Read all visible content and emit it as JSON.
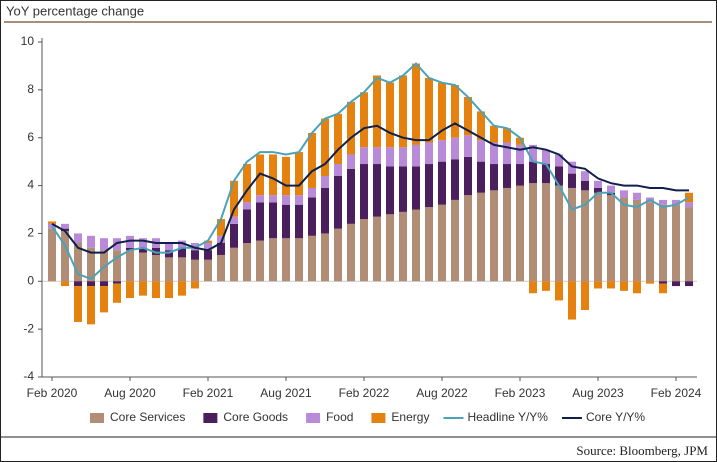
{
  "chart_data": {
    "type": "bar",
    "stacked": true,
    "title": "YoY percentage change",
    "source": "Source: Bloomberg, JPM",
    "categories": [
      "Feb 2020",
      null,
      null,
      null,
      null,
      null,
      "Aug 2020",
      null,
      null,
      null,
      null,
      null,
      "Feb 2021",
      null,
      null,
      null,
      null,
      null,
      "Aug 2021",
      null,
      null,
      null,
      null,
      null,
      "Feb 2022",
      null,
      null,
      null,
      null,
      null,
      "Aug 2022",
      null,
      null,
      null,
      null,
      null,
      "Feb 2023",
      null,
      null,
      null,
      null,
      null,
      "Aug 2023",
      null,
      null,
      null,
      null,
      null,
      "Feb 2024",
      null
    ],
    "ylim": [
      -4,
      10
    ],
    "yticks": [
      -4,
      -2,
      0,
      2,
      4,
      6,
      8,
      10
    ],
    "series": [
      {
        "name": "Core Services",
        "type": "bar",
        "color": "#b08d74",
        "values": [
          2.2,
          2.1,
          1.6,
          1.4,
          1.3,
          1.3,
          1.3,
          1.2,
          1.1,
          1.0,
          1.0,
          0.9,
          0.9,
          1.1,
          1.4,
          1.6,
          1.7,
          1.8,
          1.8,
          1.8,
          1.9,
          2.0,
          2.2,
          2.4,
          2.6,
          2.7,
          2.8,
          2.9,
          3.0,
          3.1,
          3.2,
          3.4,
          3.6,
          3.7,
          3.8,
          3.9,
          4.0,
          4.1,
          4.1,
          4.0,
          3.9,
          3.8,
          3.7,
          3.6,
          3.5,
          3.4,
          3.3,
          3.2,
          3.2,
          3.1
        ]
      },
      {
        "name": "Core Goods",
        "type": "bar",
        "color": "#4b1f5e",
        "values": [
          0.0,
          0.1,
          -0.2,
          -0.2,
          -0.2,
          -0.1,
          0.1,
          0.2,
          0.3,
          0.3,
          0.4,
          0.4,
          0.4,
          0.5,
          1.0,
          1.4,
          1.6,
          1.5,
          1.4,
          1.4,
          1.6,
          1.9,
          2.2,
          2.3,
          2.3,
          2.2,
          2.0,
          1.9,
          1.8,
          1.8,
          1.8,
          1.7,
          1.6,
          1.3,
          1.1,
          1.0,
          0.9,
          0.9,
          0.8,
          0.8,
          0.6,
          0.4,
          0.2,
          0.1,
          0.0,
          0.0,
          0.0,
          -0.1,
          -0.2,
          -0.2
        ]
      },
      {
        "name": "Food",
        "type": "bar",
        "color": "#b98ad8",
        "values": [
          0.2,
          0.2,
          0.4,
          0.5,
          0.5,
          0.5,
          0.5,
          0.4,
          0.4,
          0.3,
          0.3,
          0.3,
          0.3,
          0.3,
          0.3,
          0.3,
          0.3,
          0.3,
          0.4,
          0.4,
          0.4,
          0.5,
          0.5,
          0.6,
          0.7,
          0.7,
          0.8,
          0.8,
          0.9,
          0.9,
          0.9,
          0.9,
          0.9,
          0.9,
          0.9,
          0.9,
          0.8,
          0.7,
          0.6,
          0.5,
          0.5,
          0.4,
          0.3,
          0.3,
          0.3,
          0.3,
          0.2,
          0.2,
          0.2,
          0.2
        ]
      },
      {
        "name": "Energy",
        "type": "bar",
        "color": "#e5820f",
        "values": [
          0.1,
          -0.2,
          -1.5,
          -1.6,
          -1.1,
          -0.8,
          -0.7,
          -0.6,
          -0.7,
          -0.7,
          -0.6,
          -0.3,
          0.1,
          0.7,
          1.5,
          1.6,
          1.7,
          1.7,
          1.6,
          1.8,
          2.3,
          2.4,
          2.1,
          2.2,
          2.3,
          3.0,
          2.7,
          3.0,
          3.4,
          2.7,
          2.4,
          2.2,
          1.6,
          1.2,
          0.7,
          0.6,
          0.3,
          -0.5,
          -0.4,
          -0.8,
          -1.6,
          -1.2,
          -0.3,
          -0.3,
          -0.4,
          -0.5,
          -0.1,
          -0.4,
          0.0,
          0.4
        ]
      },
      {
        "name": "Headline Y/Y%",
        "type": "line",
        "color": "#4aa3b8",
        "values": [
          2.3,
          1.5,
          0.3,
          0.1,
          0.6,
          1.0,
          1.3,
          1.4,
          1.2,
          1.2,
          1.4,
          1.4,
          1.7,
          2.6,
          4.2,
          5.0,
          5.4,
          5.4,
          5.3,
          5.4,
          6.2,
          6.8,
          7.0,
          7.5,
          7.9,
          8.5,
          8.3,
          8.6,
          9.1,
          8.5,
          8.3,
          8.2,
          7.7,
          7.1,
          6.5,
          6.4,
          6.0,
          5.0,
          4.9,
          4.0,
          3.0,
          3.2,
          3.7,
          3.7,
          3.2,
          3.1,
          3.4,
          3.1,
          3.2,
          3.5
        ]
      },
      {
        "name": "Core Y/Y%",
        "type": "line",
        "color": "#10204a",
        "values": [
          2.4,
          2.1,
          1.4,
          1.2,
          1.2,
          1.6,
          1.7,
          1.7,
          1.6,
          1.6,
          1.6,
          1.4,
          1.3,
          1.6,
          3.0,
          3.8,
          4.5,
          4.3,
          4.0,
          4.0,
          4.6,
          4.9,
          5.5,
          6.0,
          6.4,
          6.5,
          6.2,
          6.0,
          5.9,
          5.9,
          6.3,
          6.6,
          6.3,
          6.0,
          5.7,
          5.6,
          5.5,
          5.6,
          5.5,
          5.3,
          4.8,
          4.7,
          4.3,
          4.1,
          4.0,
          4.0,
          3.9,
          3.9,
          3.8,
          3.8
        ]
      }
    ]
  }
}
